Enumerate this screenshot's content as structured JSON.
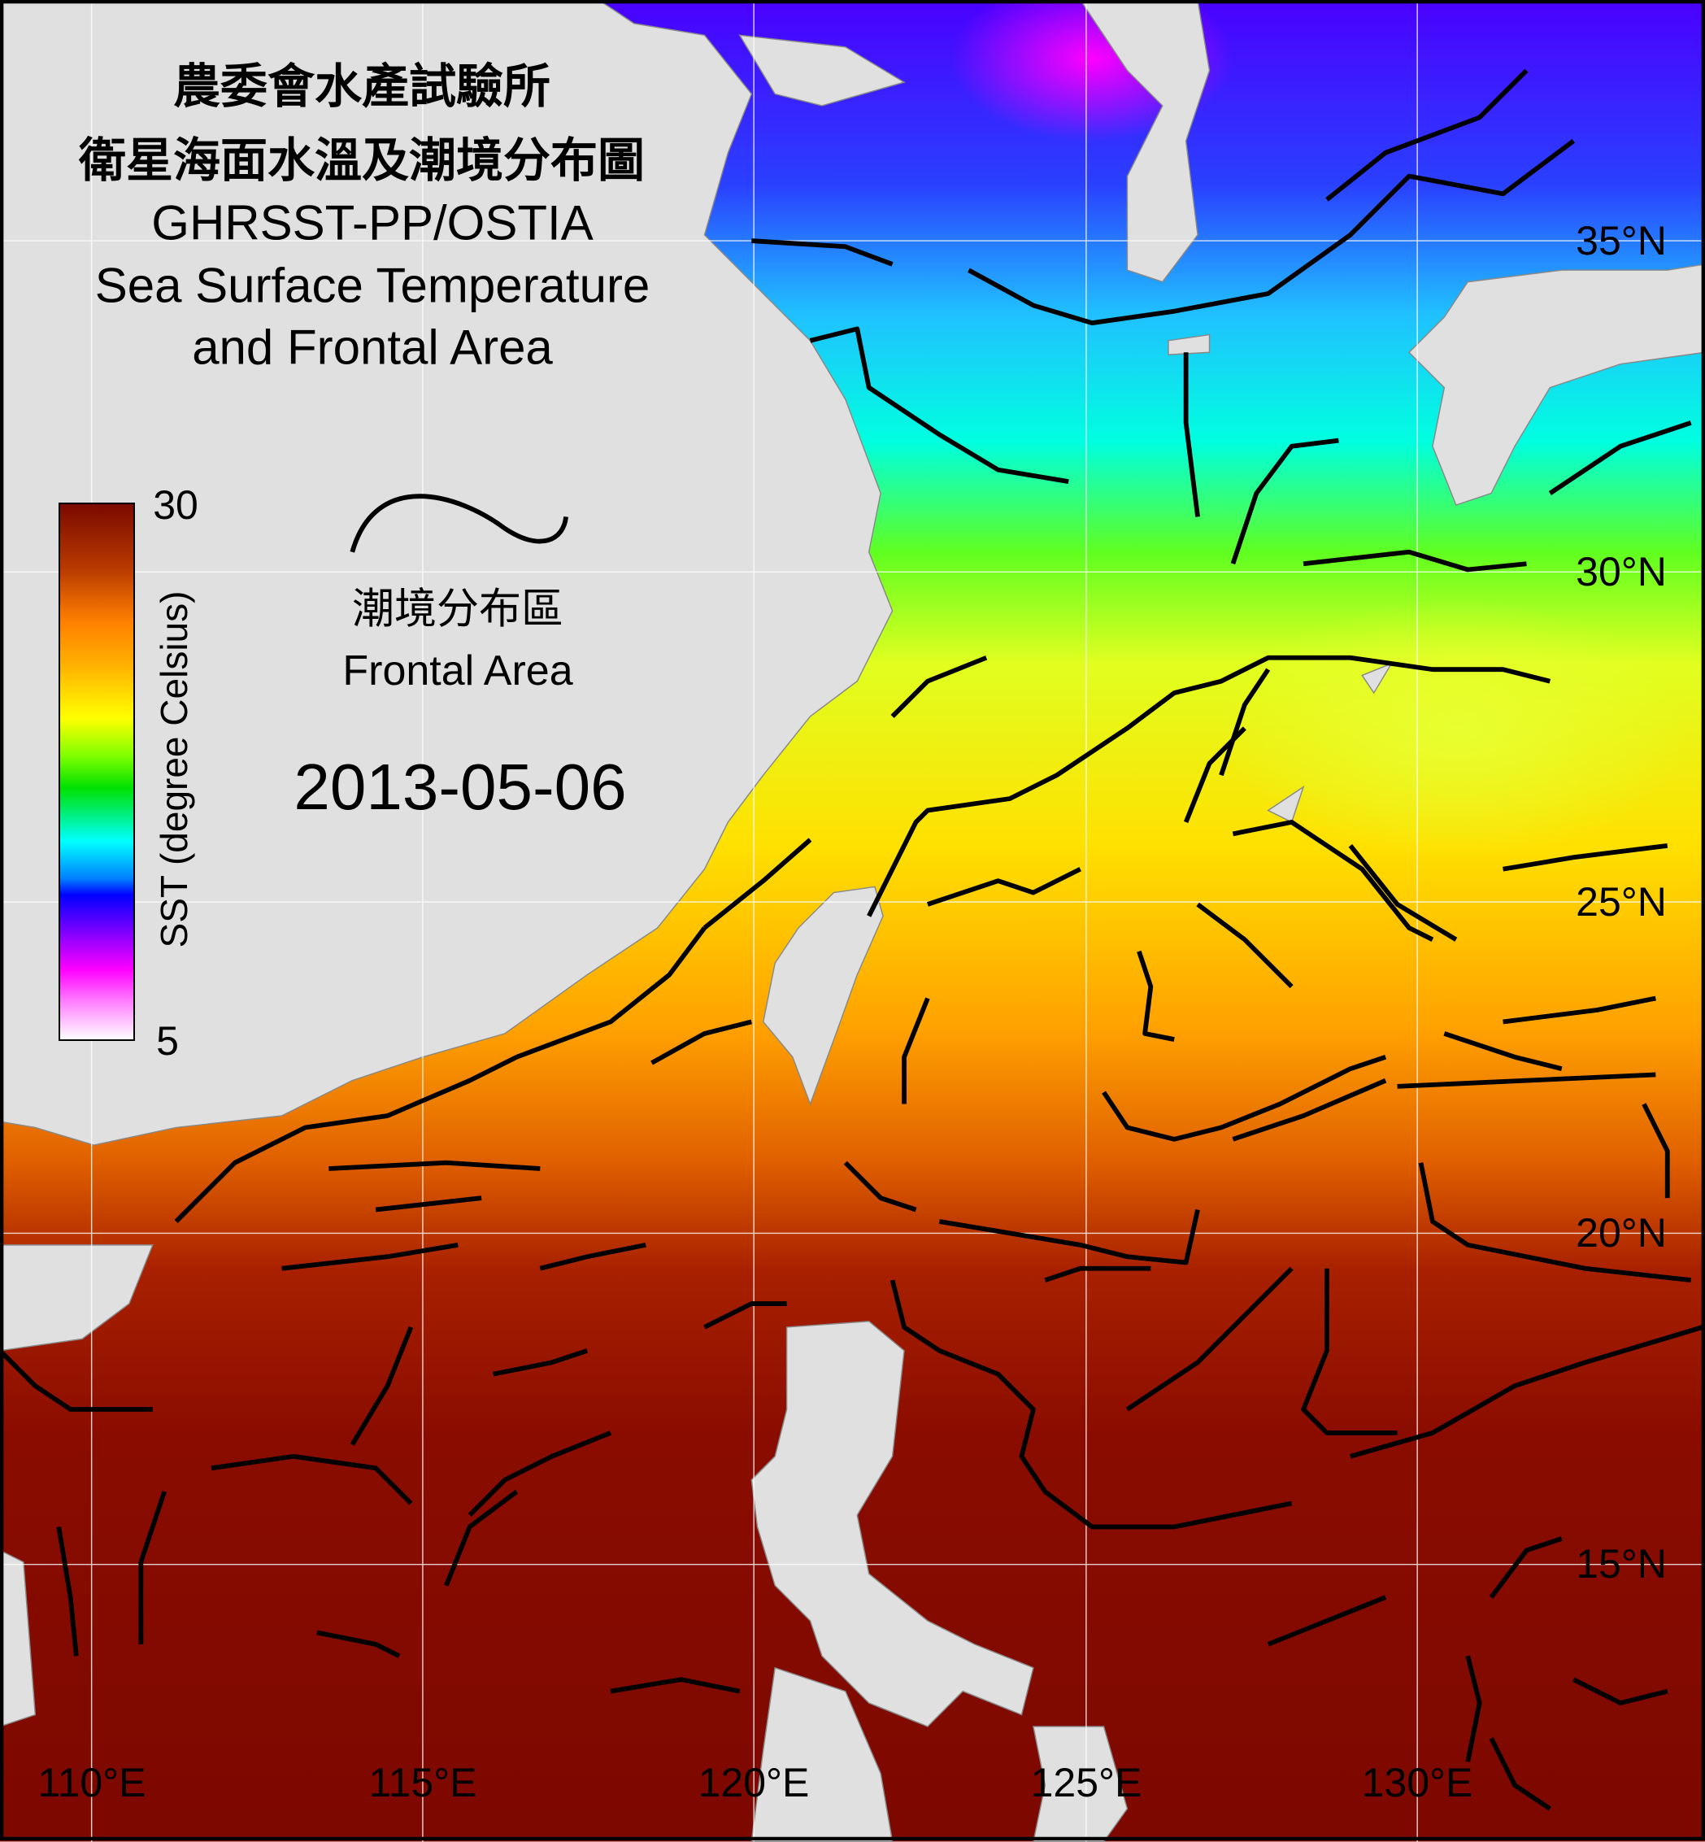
{
  "title": {
    "zh_line1": "農委會水產試驗所",
    "zh_line2": "衛星海面水溫及潮境分布圖",
    "en_line1": "GHRSST-PP/OSTIA",
    "en_line2": "Sea Surface Temperature",
    "en_line3": "and Frontal Area"
  },
  "colorbar": {
    "max_label": "30",
    "min_label": "5",
    "label": "SST (degree Celsius)",
    "colors": [
      "#7a0a00",
      "#ff8000",
      "#ffff00",
      "#00e000",
      "#00ffff",
      "#0000ff",
      "#ff00ff",
      "#ffffff"
    ]
  },
  "legend": {
    "front_zh": "潮境分布區",
    "front_en": "Frontal Area"
  },
  "date": "2013-05-06",
  "grid": {
    "latitudes": [
      "35°N",
      "30°N",
      "25°N",
      "20°N",
      "15°N"
    ],
    "longitudes": [
      "110°E",
      "115°E",
      "120°E",
      "125°E",
      "130°E"
    ]
  },
  "colors": {
    "land": "#e0e0e0",
    "front_line": "#000000",
    "gridline": "#ffffff"
  }
}
